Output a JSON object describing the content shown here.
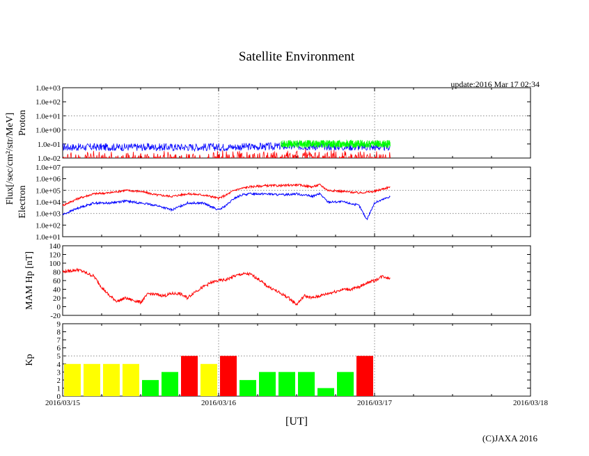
{
  "title": "Satellite Environment",
  "update": "update:2016 Mar 17 02:34",
  "xlabel": "[UT]",
  "copyright": "(C)JAXA 2016",
  "ylabel_flux": "Flux[/sec/cm²/str/MeV]",
  "x_ticks": [
    "2016/03/15",
    "2016/03/16",
    "2016/03/17",
    "2016/03/18"
  ],
  "chart_data": [
    {
      "type": "line",
      "name": "proton",
      "ylabel": "Proton",
      "yscale": "log",
      "ylim": [
        0.01,
        1000
      ],
      "y_ticks": [
        "1.0e-02",
        "1.0e-01",
        "1.0e+00",
        "1.0e+01",
        "1.0e+02",
        "1.0e+03"
      ],
      "xlim": [
        "2016/03/15",
        "2016/03/18"
      ],
      "colors": [
        "#ff0000",
        "#00ff00",
        "#0000ff"
      ],
      "series": [
        {
          "color": "#0000ff",
          "x_days": [
            0,
            0.5,
            1.0,
            1.5,
            2.0,
            2.1
          ],
          "y": [
            0.06,
            0.06,
            0.06,
            0.07,
            0.06,
            0.06
          ]
        },
        {
          "color": "#00ff00",
          "x_days": [
            1.4,
            1.6,
            1.8,
            2.0,
            2.1
          ],
          "y": [
            0.1,
            0.1,
            0.1,
            0.1,
            0.1
          ]
        },
        {
          "color": "#ff0000",
          "x_days": [
            0,
            0.5,
            1.0,
            1.5,
            2.0,
            2.1
          ],
          "y": [
            0.02,
            0.02,
            0.02,
            0.03,
            0.02,
            0.02
          ]
        }
      ]
    },
    {
      "type": "line",
      "name": "electron",
      "ylabel": "Electron",
      "yscale": "log",
      "ylim": [
        10,
        10000000
      ],
      "y_ticks": [
        "1.0e+01",
        "1.0e+02",
        "1.0e+03",
        "1.0e+04",
        "1.0e+05",
        "1.0e+06",
        "1.0e+07"
      ],
      "colors": [
        "#ff0000",
        "#0000ff"
      ],
      "series": [
        {
          "color": "#ff0000",
          "x_days": [
            0,
            0.1,
            0.2,
            0.3,
            0.4,
            0.5,
            0.6,
            0.7,
            0.8,
            0.9,
            0.95,
            1.0,
            1.05,
            1.1,
            1.15,
            1.2,
            1.3,
            1.4,
            1.5,
            1.6,
            1.65,
            1.7,
            1.8,
            1.9,
            2.0,
            2.1
          ],
          "y": [
            5000,
            20000,
            50000,
            60000,
            100000,
            80000,
            40000,
            30000,
            50000,
            40000,
            30000,
            20000,
            40000,
            100000,
            150000,
            200000,
            250000,
            250000,
            300000,
            200000,
            300000,
            100000,
            80000,
            60000,
            80000,
            200000
          ]
        },
        {
          "color": "#0000ff",
          "x_days": [
            0,
            0.1,
            0.2,
            0.3,
            0.4,
            0.5,
            0.6,
            0.7,
            0.8,
            0.9,
            0.95,
            1.0,
            1.05,
            1.1,
            1.15,
            1.2,
            1.3,
            1.4,
            1.5,
            1.6,
            1.65,
            1.7,
            1.8,
            1.9,
            1.95,
            2.0,
            2.1
          ],
          "y": [
            800,
            3000,
            8000,
            8000,
            12000,
            8000,
            5000,
            2000,
            8000,
            8000,
            4000,
            2000,
            5000,
            20000,
            40000,
            50000,
            50000,
            40000,
            50000,
            30000,
            50000,
            10000,
            10000,
            5000,
            300,
            8000,
            30000
          ]
        }
      ]
    },
    {
      "type": "line",
      "name": "mam_hp",
      "ylabel": "MAM Hp [nT]",
      "ylim": [
        -20,
        140
      ],
      "y_ticks": [
        "-20",
        "0",
        "20",
        "40",
        "60",
        "80",
        "100",
        "120",
        "140"
      ],
      "series": [
        {
          "color": "#ff0000",
          "x_days": [
            0,
            0.1,
            0.2,
            0.25,
            0.3,
            0.35,
            0.4,
            0.45,
            0.5,
            0.55,
            0.6,
            0.65,
            0.7,
            0.75,
            0.8,
            0.85,
            0.9,
            0.95,
            1.0,
            1.05,
            1.1,
            1.15,
            1.2,
            1.25,
            1.3,
            1.35,
            1.4,
            1.45,
            1.5,
            1.55,
            1.6,
            1.65,
            1.7,
            1.75,
            1.8,
            1.85,
            1.9,
            1.95,
            2.0,
            2.05,
            2.1
          ],
          "y": [
            80,
            85,
            70,
            45,
            25,
            12,
            20,
            15,
            10,
            30,
            28,
            25,
            30,
            30,
            20,
            35,
            45,
            55,
            60,
            62,
            70,
            75,
            75,
            65,
            50,
            40,
            30,
            20,
            5,
            25,
            20,
            25,
            30,
            35,
            40,
            40,
            45,
            55,
            60,
            70,
            65
          ]
        }
      ]
    },
    {
      "type": "bar",
      "name": "kp",
      "ylabel": "Kp",
      "ylim": [
        0,
        9
      ],
      "y_ticks": [
        "0",
        "1",
        "2",
        "3",
        "4",
        "5",
        "6",
        "7",
        "8",
        "9"
      ],
      "bar_width_hours": 3,
      "values": [
        4,
        4,
        4,
        4,
        2,
        3,
        5,
        4,
        5,
        2,
        3,
        3,
        3,
        1,
        3,
        5
      ],
      "colors": [
        "#ffff00",
        "#ffff00",
        "#ffff00",
        "#ffff00",
        "#00ff00",
        "#00ff00",
        "#ff0000",
        "#ffff00",
        "#ff0000",
        "#00ff00",
        "#00ff00",
        "#00ff00",
        "#00ff00",
        "#00ff00",
        "#00ff00",
        "#ff0000"
      ]
    }
  ]
}
